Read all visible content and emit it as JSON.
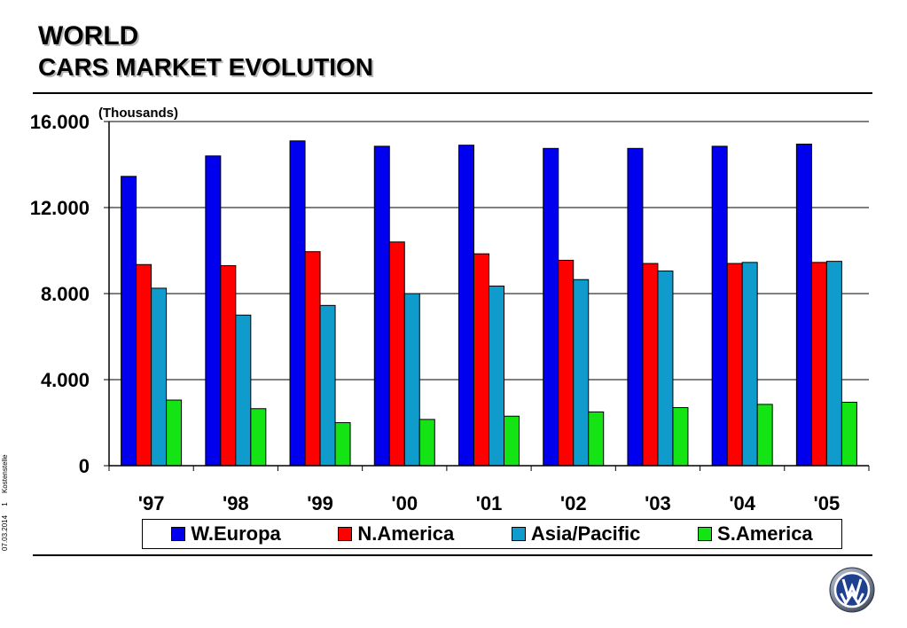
{
  "title": {
    "line1": "WORLD",
    "line2": "CARS  MARKET EVOLUTION"
  },
  "side_text": {
    "date": "07.03.2014",
    "page": "1",
    "label": "Kostenstelle"
  },
  "colors": {
    "W.Europa": "#0000ee",
    "N.America": "#ff0000",
    "Asia/Pacific": "#0f9bcc",
    "S.America": "#14e414"
  },
  "logo": {
    "icon": "vw-logo-icon"
  },
  "chart_data": {
    "type": "bar",
    "unit_label": "(Thousands)",
    "categories": [
      "'97",
      "'98",
      "'99",
      "'00",
      "'01",
      "'02",
      "'03",
      "'04",
      "'05"
    ],
    "ylim": [
      0,
      16000
    ],
    "yticks": [
      0,
      4000,
      8000,
      12000,
      16000
    ],
    "ytick_labels": [
      "0",
      "4.000",
      "8.000",
      "12.000",
      "16.000"
    ],
    "grid": true,
    "legend_position": "bottom",
    "series": [
      {
        "name": "W.Europa",
        "color": "#0000ee",
        "values": [
          13450,
          14400,
          15100,
          14850,
          14900,
          14750,
          14750,
          14850,
          14950
        ]
      },
      {
        "name": "N.America",
        "color": "#ff0000",
        "values": [
          9350,
          9300,
          9950,
          10400,
          9850,
          9550,
          9400,
          9400,
          9450
        ]
      },
      {
        "name": "Asia/Pacific",
        "color": "#0f9bcc",
        "values": [
          8250,
          7000,
          7450,
          8000,
          8350,
          8650,
          9050,
          9450,
          9500
        ]
      },
      {
        "name": "S.America",
        "color": "#14e414",
        "values": [
          3050,
          2650,
          2000,
          2150,
          2300,
          2500,
          2700,
          2850,
          2950
        ]
      }
    ]
  }
}
